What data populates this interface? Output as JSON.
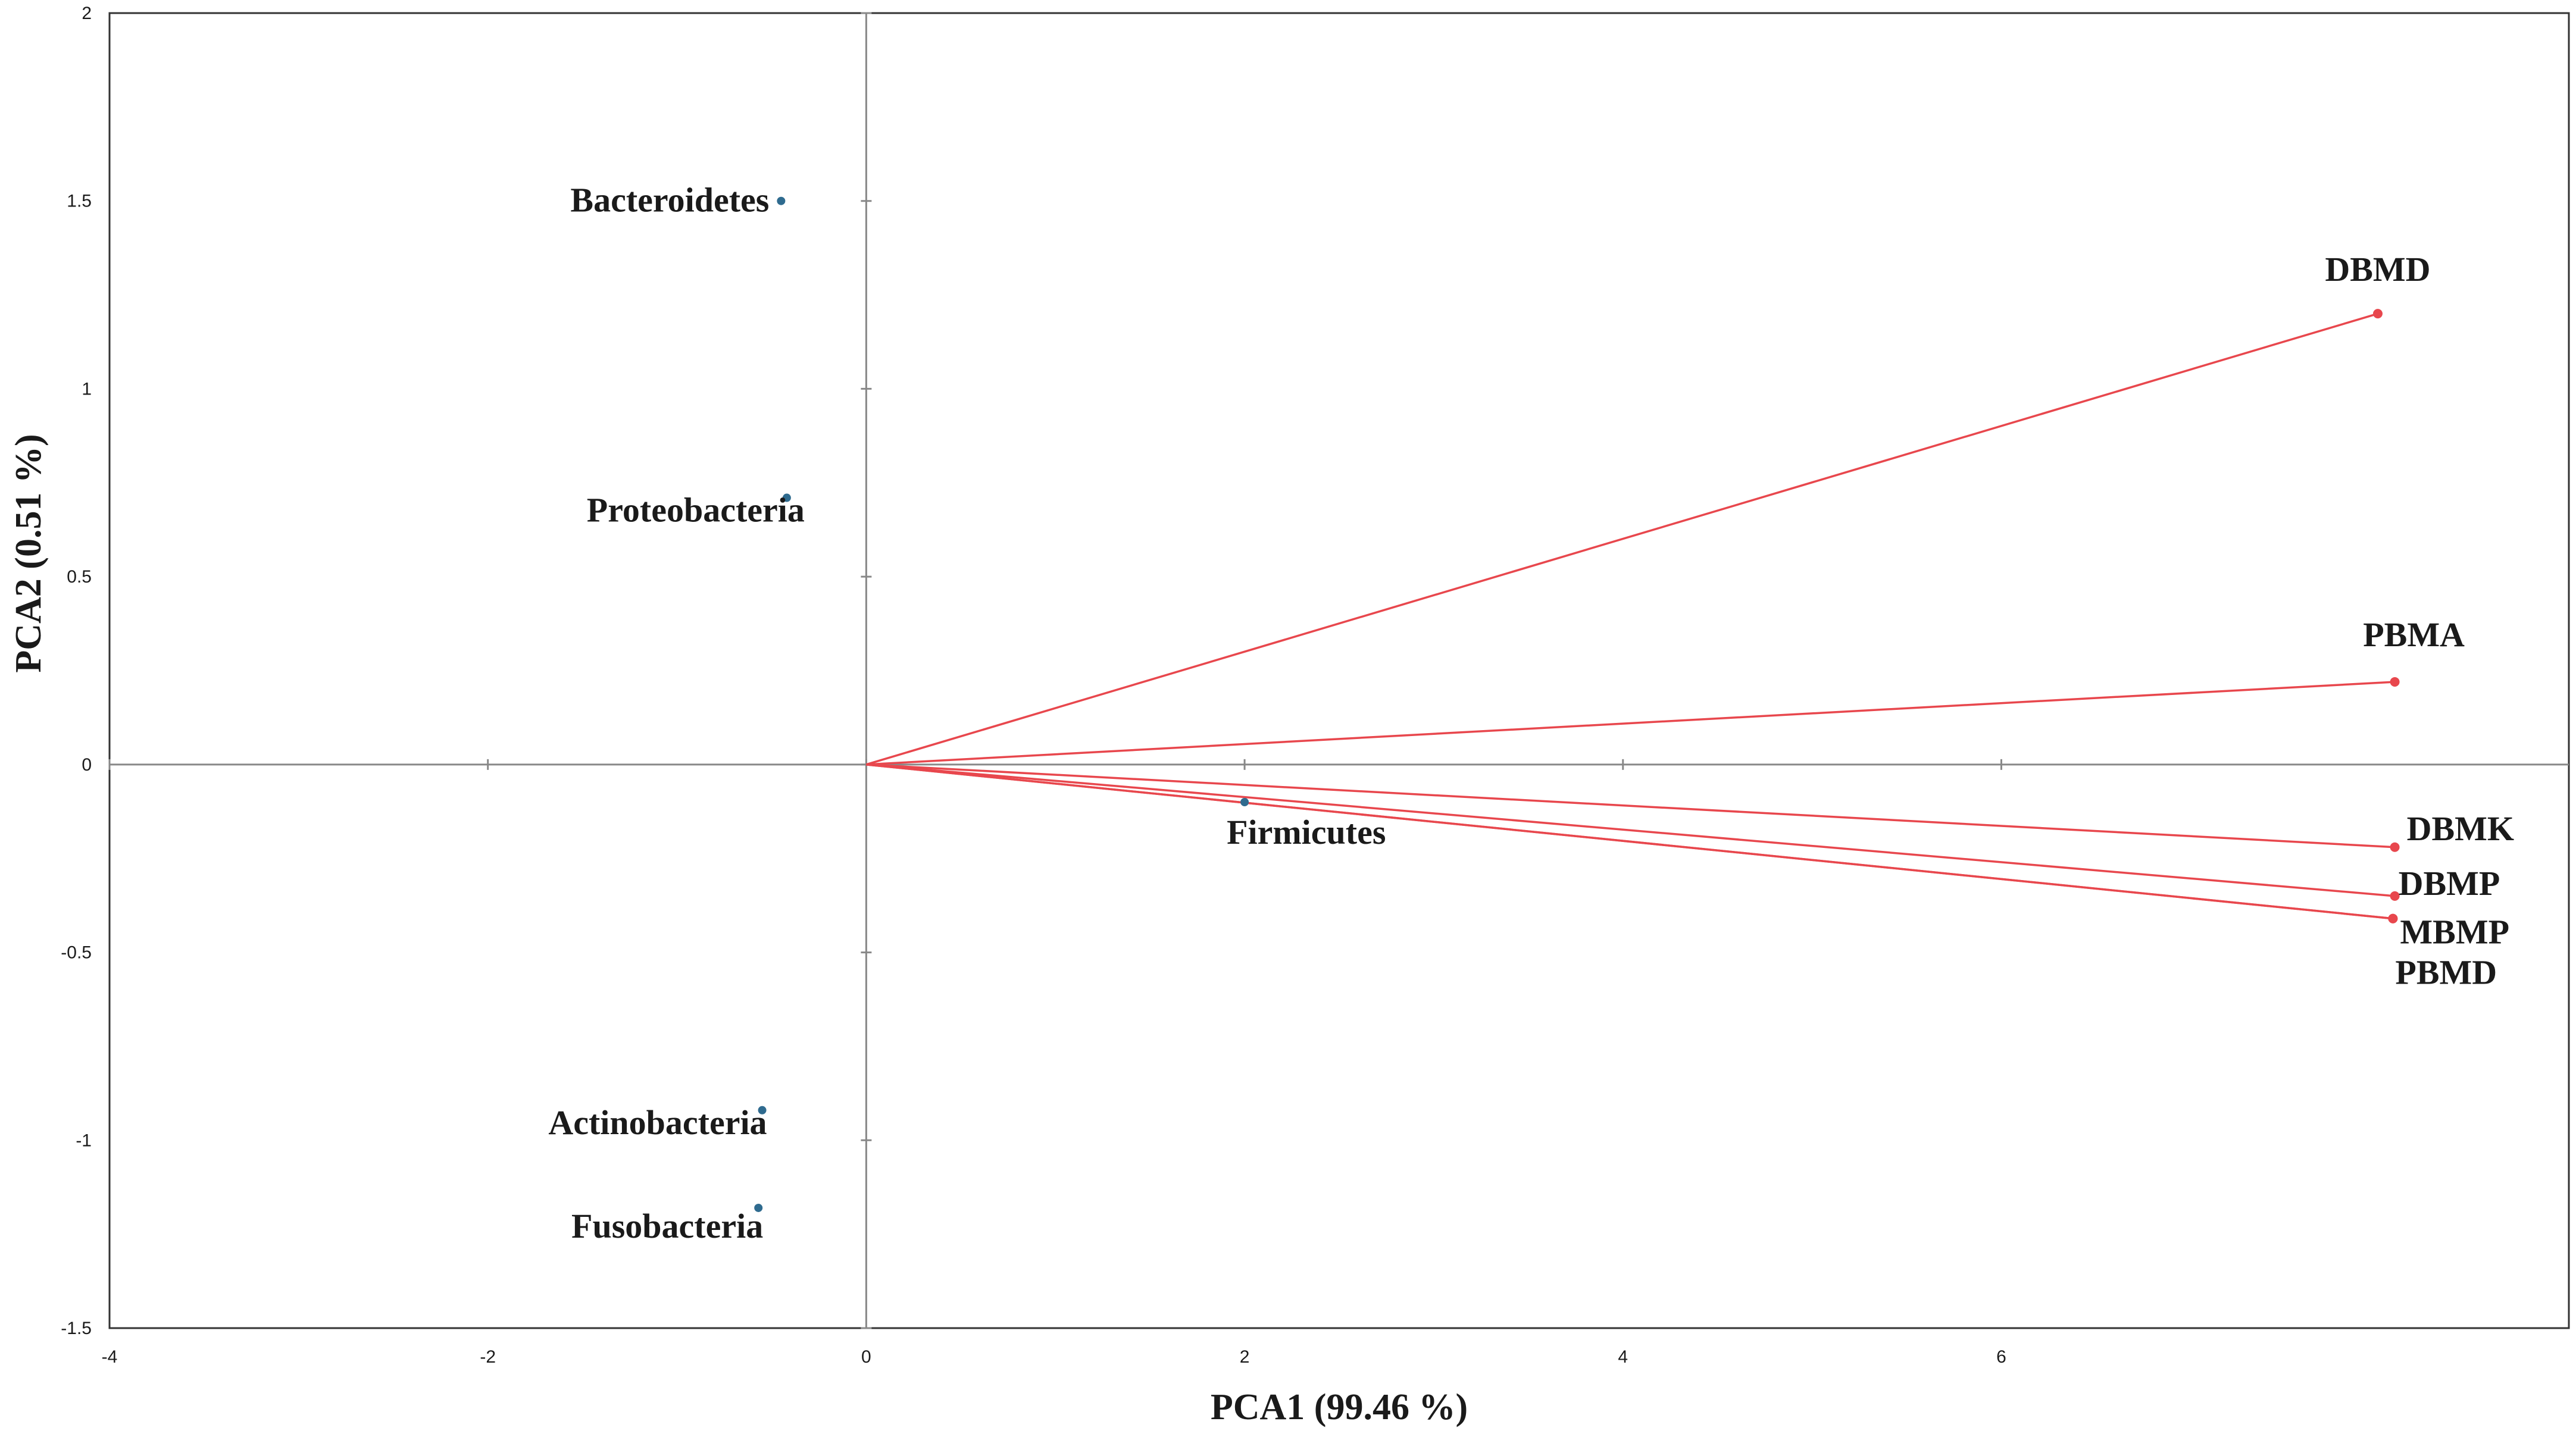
{
  "chart_data": {
    "type": "scatter",
    "title": "",
    "xlabel": "PCA1 (99.46 %)",
    "ylabel": "PCA2 (0.51 %)",
    "xlim": [
      -4,
      9
    ],
    "ylim": [
      -1.5,
      2
    ],
    "x_ticks": [
      -4,
      -2,
      0,
      2,
      4,
      6
    ],
    "y_ticks": [
      -1.5,
      -1,
      -0.5,
      0,
      0.5,
      1,
      1.5,
      2
    ],
    "grid": false,
    "legend": "none",
    "series": [
      {
        "kind": "points",
        "color": "#2f6b8f",
        "points": [
          {
            "label": "Bacteroidetes",
            "x": -0.45,
            "y": 1.5
          },
          {
            "label": "Proteobacteria",
            "x": -0.42,
            "y": 0.71
          },
          {
            "label": "Firmicutes",
            "x": 2.0,
            "y": -0.1
          },
          {
            "label": "Actinobacteria",
            "x": -0.55,
            "y": -0.92
          },
          {
            "label": "Fusobacteria",
            "x": -0.57,
            "y": -1.18
          }
        ]
      },
      {
        "kind": "vectors",
        "color": "#e8474d",
        "origin": [
          0,
          0
        ],
        "points": [
          {
            "label": "DBMD",
            "x": 7.99,
            "y": 1.2
          },
          {
            "label": "PBMA",
            "x": 8.08,
            "y": 0.22
          },
          {
            "label": "DBMK",
            "x": 8.08,
            "y": -0.22
          },
          {
            "label": "DBMP",
            "x": 8.08,
            "y": -0.35
          },
          {
            "label": "MBMP",
            "x": 8.07,
            "y": -0.41
          },
          {
            "label": "PBMD",
            "x": 8.07,
            "y": -0.41
          }
        ]
      }
    ]
  }
}
